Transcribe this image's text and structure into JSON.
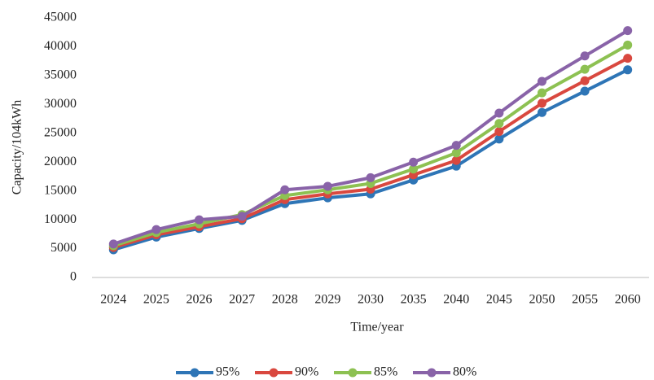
{
  "chart_data": {
    "type": "line",
    "x_label": "Time/year",
    "y_label": "Capacity/104kWh",
    "categories": [
      "2024",
      "2025",
      "2026",
      "2027",
      "2028",
      "2029",
      "2030",
      "2035",
      "2040",
      "2045",
      "2050",
      "2055",
      "2060"
    ],
    "series": [
      {
        "name": "95%",
        "color": "#2e75b6",
        "values": [
          4800,
          7000,
          8500,
          9900,
          12800,
          13800,
          14500,
          16900,
          19300,
          24000,
          28600,
          32300,
          36000
        ]
      },
      {
        "name": "90%",
        "color": "#d9483f",
        "values": [
          5200,
          7400,
          8800,
          10200,
          13500,
          14500,
          15300,
          17800,
          20300,
          25300,
          30200,
          34100,
          38000
        ]
      },
      {
        "name": "85%",
        "color": "#8dc152",
        "values": [
          5500,
          7800,
          9300,
          10900,
          14200,
          15200,
          16300,
          18800,
          21600,
          26700,
          32000,
          36100,
          40300
        ]
      },
      {
        "name": "80%",
        "color": "#8963a8",
        "values": [
          5800,
          8300,
          10000,
          10600,
          15200,
          15800,
          17300,
          20000,
          22900,
          28500,
          34000,
          38400,
          42800
        ]
      }
    ],
    "ylim": [
      0,
      45000
    ],
    "yticks": [
      0,
      5000,
      10000,
      15000,
      20000,
      25000,
      30000,
      35000,
      40000,
      45000
    ],
    "grid": false,
    "legend": "bottom"
  }
}
